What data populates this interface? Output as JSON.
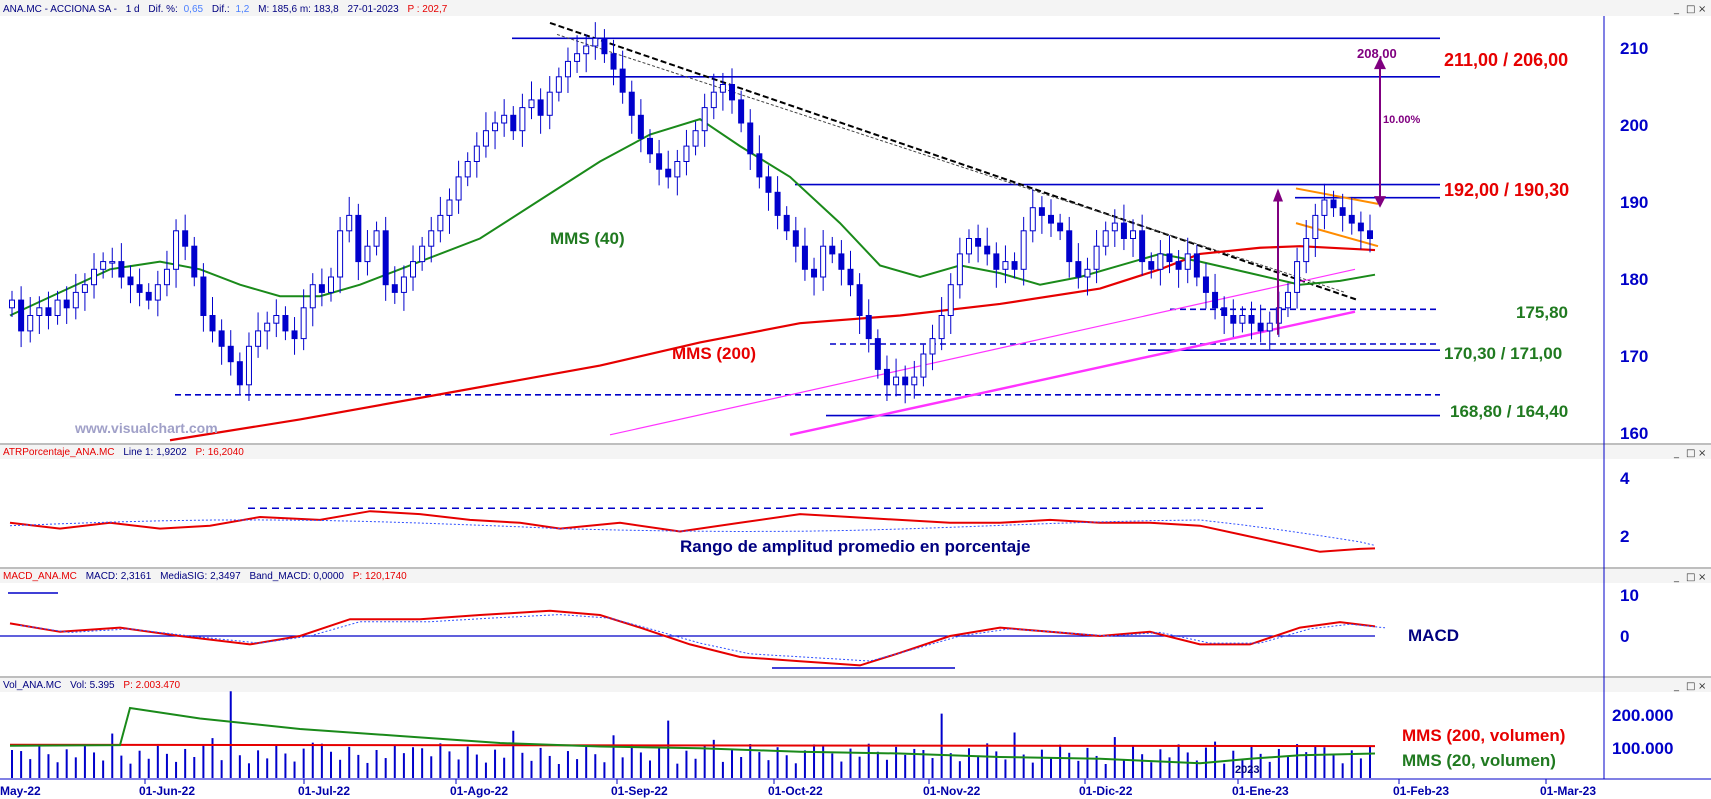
{
  "colors": {
    "axis": "#0000c8",
    "price": "#0000cc",
    "red": "#e60000",
    "green": "#1a8a1a",
    "darkgreen": "#207a20",
    "magenta": "#ff33ff",
    "purple": "#800080",
    "orange": "#ff8c00",
    "navy": "#000080"
  },
  "main_panel": {
    "header_name": "ANA.MC - ACCIONA SA -",
    "header_period": "1 d",
    "header_difpct_label": "Dif. %:",
    "header_difpct": "0,65",
    "header_dif_label": "Dif.:",
    "header_dif": "1,2",
    "header_hl": "M: 185,6  m: 183,8",
    "header_date": "27-01-2023",
    "header_p": "P : 202,7",
    "watermark": "www.visualchart.com",
    "label_mms40": "MMS (40)",
    "label_mms200": "MMS (200)",
    "resistance_1": "211,00 / 206,00",
    "resistance_2": "192,00 / 190,30",
    "support_1": "175,80",
    "support_2": "170,30 / 171,00",
    "support_3": "168,80 / 164,40",
    "target_value": "208,00",
    "target_pct": "10.00%"
  },
  "atr_panel": {
    "header_name": "ATRPorcentaje_ANA.MC",
    "header_line": "Line 1: 1,9202",
    "header_p": "P: 16,2040",
    "caption": "Rango de amplitud promedio en porcentaje"
  },
  "macd_panel": {
    "header_name": "MACD_ANA.MC",
    "header_macd": "MACD: 2,3161",
    "header_sig": "MediaSIG: 2,3497",
    "header_band": "Band_MACD: 0,0000",
    "header_p": "P: 120,1740",
    "caption": "MACD"
  },
  "vol_panel": {
    "header_name": "Vol_ANA.MC",
    "header_vol": "Vol: 5.395",
    "header_p": "P: 2.003.470",
    "label_mms200": "MMS (200, volumen)",
    "label_mms20": "MMS (20, volumen)"
  },
  "window_buttons": [
    "_",
    "□",
    "×"
  ],
  "x_axis": {
    "labels": [
      "May-22",
      "01-Jun-22",
      "01-Jul-22",
      "01-Ago-22",
      "01-Sep-22",
      "01-Oct-22",
      "01-Nov-22",
      "01-Dic-22",
      "01-Ene-23",
      "01-Feb-23",
      "01-Mar-23"
    ],
    "year_marker": "2023"
  },
  "chart_data": [
    {
      "type": "candlestick",
      "title": "ANA.MC - ACCIONA SA -",
      "y_ticks": [
        160,
        170,
        180,
        190,
        200,
        210
      ],
      "ylim": [
        158,
        213
      ],
      "series_summary": {
        "start": "May-22",
        "end": "27-01-2023",
        "low_zone": [
          162,
          166
        ],
        "high": 211.5,
        "last": 185.6
      },
      "levels": [
        211.0,
        206.0,
        192.0,
        190.3,
        175.8,
        170.3,
        171.0,
        168.8,
        164.4
      ],
      "target": 208.0,
      "target_pct": 10.0
    },
    {
      "type": "line",
      "title": "ATRPorcentaje_ANA.MC",
      "y_ticks": [
        2,
        4
      ],
      "last": 1.9202
    },
    {
      "type": "line",
      "title": "MACD_ANA.MC",
      "y_ticks": [
        10,
        0
      ],
      "macd": 2.3161,
      "signal": 2.3497,
      "band": 0.0
    },
    {
      "type": "bar",
      "title": "Vol_ANA.MC",
      "y_ticks": [
        "200.000",
        "100.000"
      ],
      "last": 5395
    }
  ]
}
